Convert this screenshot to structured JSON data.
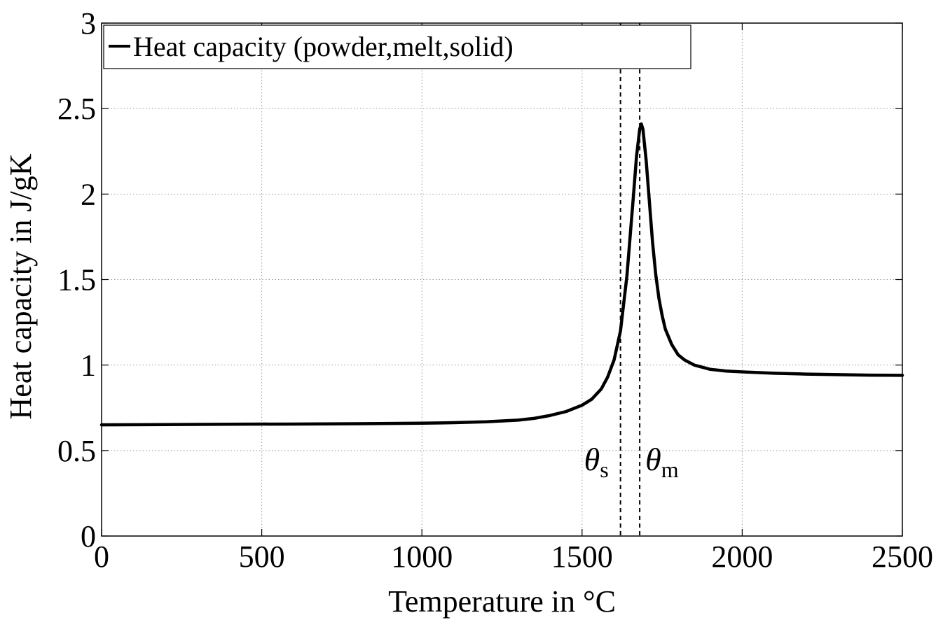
{
  "chart_data": {
    "type": "line",
    "title": "",
    "xlabel": "Temperature in °C",
    "ylabel": "Heat capacity in J/gK",
    "xlim": [
      0,
      2500
    ],
    "ylim": [
      0,
      3
    ],
    "xticks": [
      0,
      500,
      1000,
      1500,
      2000,
      2500
    ],
    "yticks": [
      0,
      0.5,
      1,
      1.5,
      2,
      2.5,
      3
    ],
    "xtick_labels": [
      "0",
      "500",
      "1000",
      "1500",
      "2000",
      "2500"
    ],
    "ytick_labels": [
      "0",
      "0.5",
      "1",
      "1.5",
      "2",
      "2.5",
      "3"
    ],
    "grid": true,
    "legend": {
      "placement": "top-left",
      "entries": [
        "Heat capacity (powder,melt,solid)"
      ]
    },
    "series": [
      {
        "name": "Heat capacity (powder,melt,solid)",
        "color": "#000000",
        "x": [
          0,
          200,
          400,
          600,
          800,
          1000,
          1100,
          1200,
          1300,
          1350,
          1400,
          1450,
          1500,
          1530,
          1560,
          1580,
          1600,
          1620,
          1640,
          1650,
          1660,
          1670,
          1680,
          1685,
          1690,
          1700,
          1710,
          1720,
          1730,
          1740,
          1750,
          1760,
          1780,
          1800,
          1820,
          1850,
          1880,
          1900,
          1950,
          2000,
          2100,
          2200,
          2300,
          2400,
          2500
        ],
        "y": [
          0.65,
          0.652,
          0.654,
          0.655,
          0.657,
          0.66,
          0.663,
          0.668,
          0.678,
          0.688,
          0.705,
          0.728,
          0.765,
          0.8,
          0.86,
          0.93,
          1.03,
          1.2,
          1.52,
          1.75,
          1.98,
          2.22,
          2.38,
          2.41,
          2.38,
          2.2,
          1.96,
          1.72,
          1.53,
          1.39,
          1.29,
          1.21,
          1.12,
          1.06,
          1.03,
          1.0,
          0.985,
          0.975,
          0.965,
          0.96,
          0.952,
          0.947,
          0.944,
          0.941,
          0.94
        ]
      }
    ],
    "reference_lines": [
      {
        "x": 1620,
        "style": "dashed",
        "label": "θ",
        "subscript": "s"
      },
      {
        "x": 1680,
        "style": "dashed",
        "label": "θ",
        "subscript": "m"
      }
    ]
  }
}
